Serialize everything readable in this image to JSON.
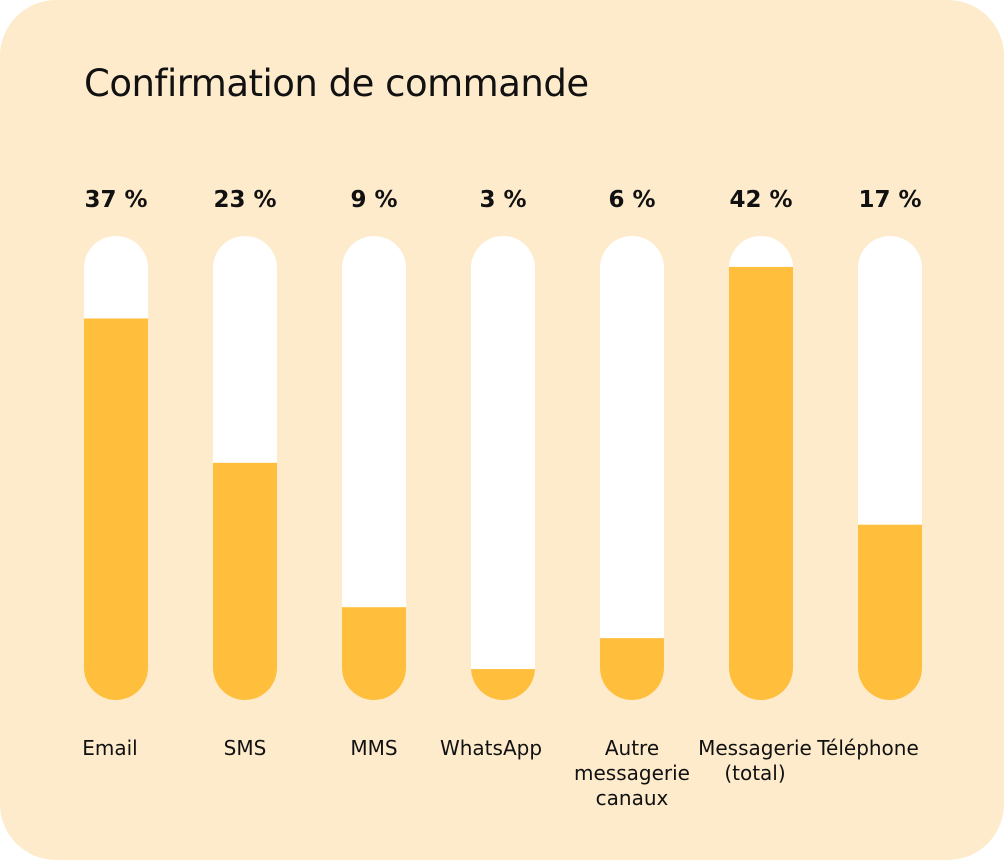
{
  "colors": {
    "background": "#fdebcc",
    "track": "#ffffff",
    "fill": "#ffbe3c",
    "text": "#111111"
  },
  "chart_data": {
    "type": "bar",
    "title": "Confirmation de commande",
    "categories": [
      [
        "Email"
      ],
      [
        "SMS"
      ],
      [
        "MMS"
      ],
      [
        "WhatsApp"
      ],
      [
        "Autre",
        "messagerie",
        "canaux"
      ],
      [
        "Messagerie",
        "(total)"
      ],
      [
        "Téléphone"
      ]
    ],
    "values": [
      37,
      23,
      9,
      3,
      6,
      42,
      17
    ],
    "value_labels": [
      "37 %",
      "23 %",
      "9 %",
      "3 %",
      "6 %",
      "42 %",
      "17 %"
    ],
    "unit": "%",
    "ylim": [
      0,
      45
    ],
    "grid": false,
    "legend": "none"
  }
}
